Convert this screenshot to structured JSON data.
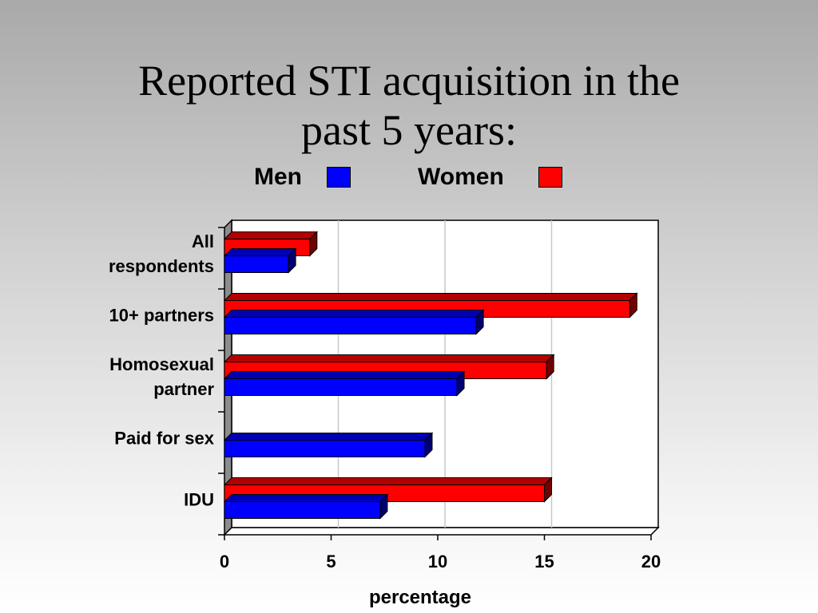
{
  "title_lines": [
    "Reported STI acquisition in the",
    "past 5 years:"
  ],
  "legend": [
    {
      "label": "Men",
      "color": "#0000ff"
    },
    {
      "label": "Women",
      "color": "#ff0000"
    }
  ],
  "chart_data": {
    "type": "bar",
    "orientation": "horizontal",
    "title": "Reported STI acquisition in the past 5 years:",
    "categories": [
      "All respondents",
      "10+ partners",
      "Homosexual partner",
      "Paid for sex",
      "IDU"
    ],
    "category_label_lines": [
      [
        "All",
        "respondents"
      ],
      [
        "10+ partners"
      ],
      [
        "Homosexual",
        "partner"
      ],
      [
        "Paid for sex"
      ],
      [
        "IDU"
      ]
    ],
    "series": [
      {
        "name": "Women",
        "color": "#ff0000",
        "values": [
          4,
          19,
          15.1,
          null,
          15
        ]
      },
      {
        "name": "Men",
        "color": "#0000ff",
        "values": [
          3,
          11.8,
          10.9,
          9.4,
          7.3
        ]
      }
    ],
    "xlabel": "percentage",
    "ylabel": "",
    "xlim": [
      0,
      20
    ],
    "xticks": [
      "0",
      "5",
      "10",
      "15",
      "20"
    ],
    "grid": true,
    "legend_position": "top"
  }
}
